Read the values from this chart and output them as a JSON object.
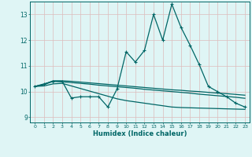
{
  "xlabel": "Humidex (Indice chaleur)",
  "bg_color": "#dff5f5",
  "grid_color": "#ddbbbb",
  "line_color": "#006666",
  "xlim": [
    -0.5,
    23.5
  ],
  "ylim": [
    8.8,
    13.5
  ],
  "yticks": [
    9,
    10,
    11,
    12,
    13
  ],
  "xticks": [
    0,
    1,
    2,
    3,
    4,
    5,
    6,
    7,
    8,
    9,
    10,
    11,
    12,
    13,
    14,
    15,
    16,
    17,
    18,
    19,
    20,
    21,
    22,
    23
  ],
  "series": [
    {
      "x": [
        0,
        1,
        2,
        3,
        4,
        5,
        6,
        7,
        8,
        9,
        10,
        11,
        12,
        13,
        14,
        15,
        16,
        17,
        18,
        19,
        20,
        21,
        22,
        23
      ],
      "y": [
        10.2,
        10.3,
        10.4,
        10.4,
        9.75,
        9.8,
        9.8,
        9.8,
        9.4,
        10.1,
        11.55,
        11.15,
        11.6,
        13.0,
        12.0,
        13.4,
        12.5,
        11.8,
        11.05,
        10.2,
        10.0,
        9.8,
        9.55,
        9.4
      ],
      "marker": "+",
      "markersize": 3.5,
      "linewidth": 0.9
    },
    {
      "x": [
        0,
        1,
        2,
        3,
        4,
        5,
        6,
        7,
        8,
        9,
        10,
        11,
        12,
        13,
        14,
        15,
        16,
        17,
        18,
        19,
        20,
        21,
        22,
        23
      ],
      "y": [
        10.2,
        10.28,
        10.42,
        10.42,
        10.4,
        10.37,
        10.34,
        10.31,
        10.28,
        10.25,
        10.22,
        10.19,
        10.16,
        10.13,
        10.1,
        10.07,
        10.05,
        10.02,
        10.0,
        9.97,
        9.94,
        9.92,
        9.89,
        9.86
      ],
      "marker": null,
      "linewidth": 0.9
    },
    {
      "x": [
        0,
        1,
        2,
        3,
        4,
        5,
        6,
        7,
        8,
        9,
        10,
        11,
        12,
        13,
        14,
        15,
        16,
        17,
        18,
        19,
        20,
        21,
        22,
        23
      ],
      "y": [
        10.2,
        10.27,
        10.4,
        10.38,
        10.35,
        10.32,
        10.29,
        10.25,
        10.22,
        10.19,
        10.16,
        10.13,
        10.09,
        10.06,
        10.03,
        10.0,
        9.97,
        9.94,
        9.9,
        9.87,
        9.84,
        9.81,
        9.78,
        9.74
      ],
      "marker": null,
      "linewidth": 0.9
    },
    {
      "x": [
        0,
        1,
        2,
        3,
        4,
        5,
        6,
        7,
        8,
        9,
        10,
        11,
        12,
        13,
        14,
        15,
        16,
        17,
        18,
        19,
        20,
        21,
        22,
        23
      ],
      "y": [
        10.2,
        10.22,
        10.3,
        10.32,
        10.22,
        10.12,
        10.02,
        9.92,
        9.82,
        9.72,
        9.65,
        9.6,
        9.55,
        9.5,
        9.45,
        9.4,
        9.38,
        9.37,
        9.36,
        9.35,
        9.34,
        9.33,
        9.32,
        9.31
      ],
      "marker": null,
      "linewidth": 0.9
    }
  ]
}
